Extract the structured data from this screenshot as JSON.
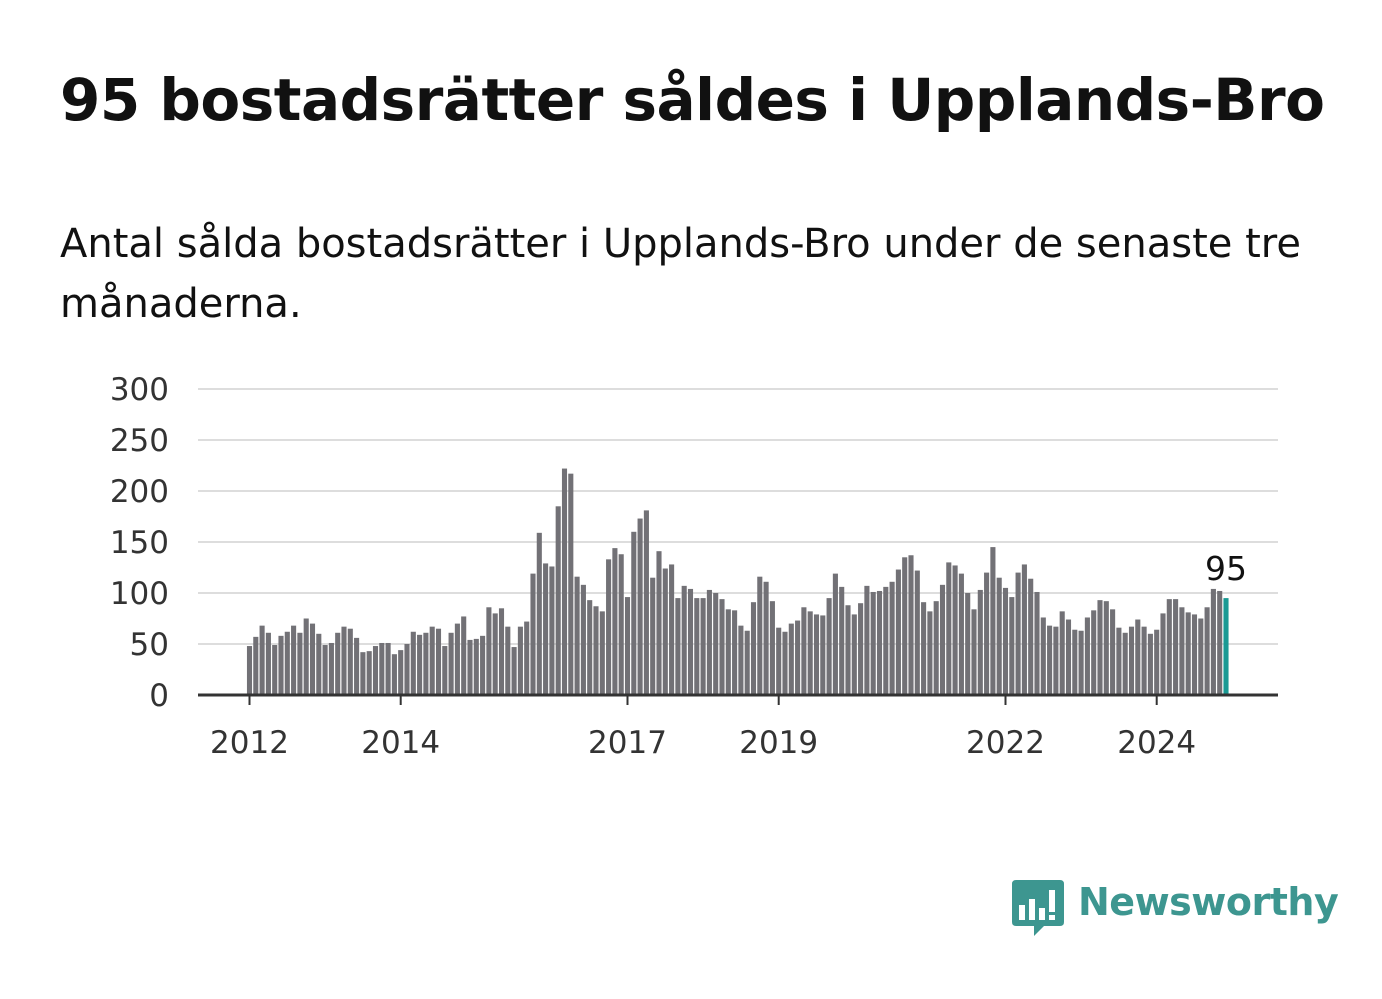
{
  "title": "95 bostadsrätter såldes i Upplands-Bro",
  "subtitle": "Antal sålda bostadsrätter i Upplands-Bro under de senaste tre månaderna.",
  "brand": {
    "name": "Newsworthy",
    "color": "#3d9690",
    "icon": "newsworthy-bar-chart-logo-icon"
  },
  "chart_data": {
    "type": "bar",
    "ylim": [
      0,
      300
    ],
    "yticks": [
      0,
      50,
      100,
      150,
      200,
      250,
      300
    ],
    "xtick_labels": [
      {
        "label": "2012",
        "month": "2012-01"
      },
      {
        "label": "2014",
        "month": "2014-01"
      },
      {
        "label": "2017",
        "month": "2017-01"
      },
      {
        "label": "2019",
        "month": "2019-01"
      },
      {
        "label": "2022",
        "month": "2022-01"
      },
      {
        "label": "2024",
        "month": "2024-01"
      }
    ],
    "first_month": "2012-01",
    "last_month": "2024-12",
    "bar_color": "#727176",
    "highlight_color": "#1a9a94",
    "highlight_last": true,
    "last_value_label": "95",
    "grid": true,
    "values": [
      48,
      57,
      68,
      61,
      49,
      58,
      62,
      68,
      61,
      75,
      70,
      60,
      49,
      51,
      61,
      67,
      65,
      56,
      42,
      43,
      48,
      51,
      51,
      40,
      44,
      50,
      62,
      59,
      61,
      67,
      65,
      48,
      61,
      70,
      77,
      54,
      55,
      58,
      86,
      80,
      85,
      67,
      47,
      67,
      72,
      119,
      159,
      129,
      126,
      185,
      222,
      217,
      116,
      108,
      93,
      87,
      82,
      133,
      144,
      138,
      96,
      160,
      173,
      181,
      115,
      141,
      124,
      128,
      95,
      107,
      104,
      95,
      95,
      103,
      100,
      94,
      84,
      83,
      68,
      63,
      91,
      116,
      111,
      92,
      66,
      62,
      70,
      73,
      86,
      82,
      79,
      78,
      95,
      119,
      106,
      88,
      79,
      90,
      107,
      101,
      102,
      106,
      111,
      123,
      135,
      137,
      122,
      91,
      82,
      92,
      108,
      130,
      127,
      119,
      100,
      84,
      103,
      120,
      145,
      115,
      105,
      96,
      120,
      128,
      114,
      101,
      76,
      68,
      67,
      82,
      74,
      64,
      63,
      76,
      83,
      93,
      92,
      84,
      66,
      61,
      67,
      74,
      67,
      60,
      64,
      80,
      94,
      94,
      86,
      81,
      79,
      75,
      86,
      104,
      102,
      95
    ]
  }
}
